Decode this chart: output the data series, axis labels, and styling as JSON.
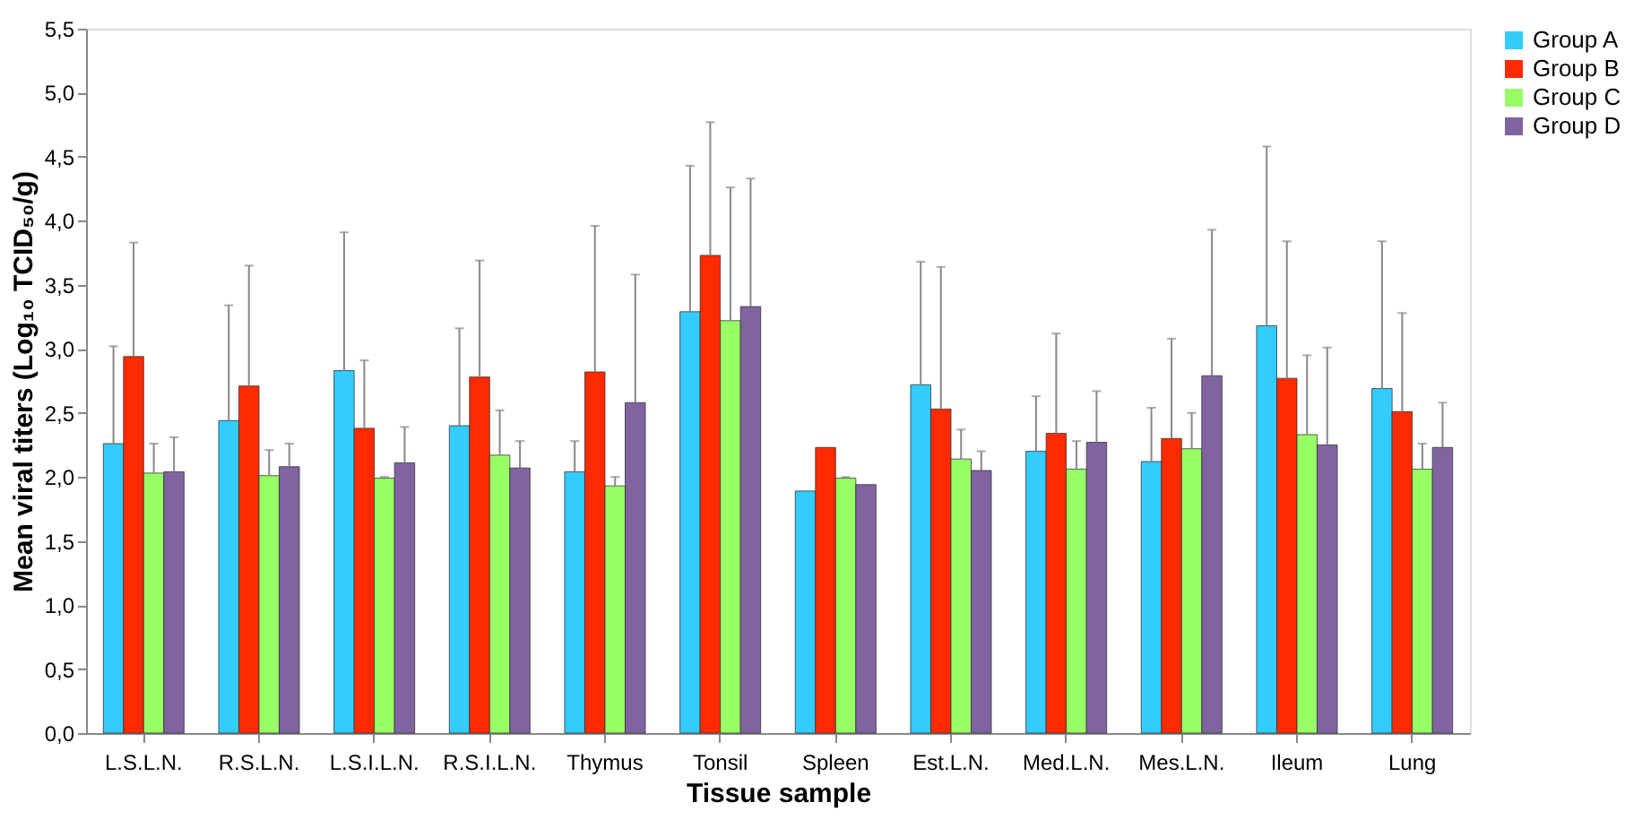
{
  "chart_data": {
    "type": "bar",
    "xlabel": "Tissue sample",
    "ylabel": "Mean viral titers (Log₁₀ TCID₅₀/g)",
    "categories": [
      "L.S.L.N.",
      "R.S.L.N.",
      "L.S.I.L.N.",
      "R.S.I.L.N.",
      "Thymus",
      "Tonsil",
      "Spleen",
      "Est.L.N.",
      "Med.L.N.",
      "Mes.L.N.",
      "Ileum",
      "Lung"
    ],
    "series": [
      {
        "name": "Group A",
        "color": "#33ccff",
        "values": [
          2.26,
          2.44,
          2.83,
          2.4,
          2.04,
          3.29,
          1.89,
          2.72,
          2.2,
          2.12,
          3.18,
          2.69
        ],
        "errors": [
          [
            2.26,
            3.02
          ],
          [
            2.44,
            3.34
          ],
          [
            2.83,
            3.91
          ],
          [
            2.4,
            3.16
          ],
          [
            2.04,
            2.28
          ],
          [
            3.29,
            4.43
          ],
          null,
          [
            2.72,
            3.68
          ],
          [
            2.2,
            2.63
          ],
          [
            2.12,
            2.54
          ],
          [
            3.18,
            4.58
          ],
          [
            2.69,
            3.84
          ]
        ]
      },
      {
        "name": "Group B",
        "color": "#ff2a00",
        "values": [
          2.94,
          2.71,
          2.38,
          2.78,
          2.82,
          3.73,
          2.23,
          2.53,
          2.34,
          2.3,
          2.77,
          2.51
        ],
        "errors": [
          [
            2.94,
            3.83
          ],
          [
            2.71,
            3.65
          ],
          [
            2.38,
            2.91
          ],
          [
            2.78,
            3.69
          ],
          [
            2.82,
            3.96
          ],
          [
            3.73,
            4.77
          ],
          null,
          [
            2.53,
            3.64
          ],
          [
            2.34,
            3.12
          ],
          [
            2.3,
            3.08
          ],
          [
            2.77,
            3.84
          ],
          [
            2.51,
            3.28
          ]
        ]
      },
      {
        "name": "Group C",
        "color": "#99ff66",
        "values": [
          2.03,
          2.01,
          1.99,
          2.17,
          1.93,
          3.22,
          1.99,
          2.14,
          2.06,
          2.22,
          2.33,
          2.06
        ],
        "errors": [
          [
            2.03,
            2.26
          ],
          [
            2.01,
            2.21
          ],
          [
            1.99,
            2.0
          ],
          [
            2.17,
            2.52
          ],
          [
            1.93,
            2.0
          ],
          [
            3.22,
            4.26
          ],
          [
            1.99,
            2.0
          ],
          [
            2.14,
            2.37
          ],
          [
            2.06,
            2.28
          ],
          [
            2.22,
            2.5
          ],
          [
            2.33,
            2.95
          ],
          [
            2.06,
            2.26
          ]
        ]
      },
      {
        "name": "Group D",
        "color": "#8064a2",
        "values": [
          2.04,
          2.08,
          2.11,
          2.07,
          2.58,
          3.33,
          1.94,
          2.05,
          2.27,
          2.79,
          2.25,
          2.23
        ],
        "errors": [
          [
            2.04,
            2.31
          ],
          [
            2.08,
            2.26
          ],
          [
            2.11,
            2.39
          ],
          [
            2.07,
            2.28
          ],
          [
            2.58,
            3.58
          ],
          [
            3.33,
            4.33
          ],
          null,
          [
            2.05,
            2.2
          ],
          [
            2.27,
            2.67
          ],
          [
            2.79,
            3.93
          ],
          [
            2.25,
            3.01
          ],
          [
            2.23,
            2.58
          ]
        ]
      }
    ],
    "ylim": [
      0,
      5.5
    ],
    "yticks": [
      {
        "value": 0,
        "label": "0,0"
      },
      {
        "value": 0.5,
        "label": "0,5"
      },
      {
        "value": 1,
        "label": "1,0"
      },
      {
        "value": 1.5,
        "label": "1,5"
      },
      {
        "value": 2,
        "label": "2,0"
      },
      {
        "value": 2.5,
        "label": "2,5"
      },
      {
        "value": 3,
        "label": "3,0"
      },
      {
        "value": 3.5,
        "label": "3,5"
      },
      {
        "value": 4,
        "label": "4,0"
      },
      {
        "value": 4.5,
        "label": "4,5"
      },
      {
        "value": 5,
        "label": "5,0"
      },
      {
        "value": 5.5,
        "label": "5,5"
      }
    ],
    "grid": false,
    "legend": "right"
  }
}
